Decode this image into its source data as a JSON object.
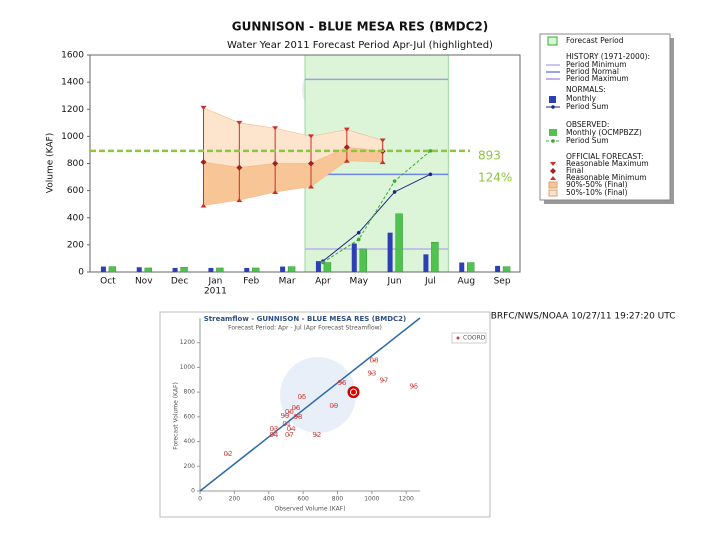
{
  "chart_data": [
    {
      "type": "bar",
      "title": "GUNNISON - BLUE MESA RES    (BMDC2)",
      "subtitle": "Water Year 2011  Forecast Period Apr-Jul (highlighted)",
      "ylabel": "Volume (KAF)",
      "categories": [
        "Oct",
        "Nov",
        "Dec",
        "Jan",
        "Feb",
        "Mar",
        "Apr",
        "May",
        "Jun",
        "Jul",
        "Aug",
        "Sep"
      ],
      "year_label": "2011",
      "ylim": [
        0,
        1600
      ],
      "yticks": [
        0,
        200,
        400,
        600,
        800,
        1000,
        1200,
        1400,
        1600
      ],
      "forecast_period": {
        "name": "Forecast Period",
        "color": "#dcf5d8"
      },
      "history": {
        "title": "HISTORY (1971-2000):",
        "lines": [
          {
            "name": "Period Minimum",
            "color": "#b9b2ec",
            "value": 170
          },
          {
            "name": "Period Normal",
            "color": "#6f86e0",
            "value": 720
          },
          {
            "name": "Period Maximum",
            "color": "#a99be6",
            "value": 1420
          }
        ]
      },
      "normals": {
        "title": "NORMALS:",
        "monthly": {
          "name": "Monthly",
          "color": "#2d3fb5",
          "values": [
            40,
            35,
            30,
            30,
            30,
            40,
            80,
            210,
            290,
            130,
            70,
            45
          ]
        },
        "period_sum": {
          "name": "Period Sum",
          "color": "#1c2a80",
          "values": [
            null,
            null,
            null,
            null,
            null,
            null,
            80,
            290,
            590,
            720,
            null,
            null
          ]
        }
      },
      "observed": {
        "title": "OBSERVED:",
        "monthly": {
          "name": "Monthly (OCMPBZZ)",
          "color": "#4fc24f",
          "values": [
            40,
            30,
            35,
            30,
            30,
            40,
            70,
            170,
            430,
            220,
            70,
            40
          ]
        },
        "period_sum": {
          "name": "Period Sum",
          "color": "#39a839",
          "values": [
            null,
            null,
            null,
            null,
            null,
            null,
            70,
            240,
            670,
            893,
            null,
            null
          ]
        }
      },
      "forecast": {
        "title": "OFFICIAL FORECAST:",
        "reasonable_max": {
          "name": "Reasonable Maximum",
          "color": "#c8322a",
          "values": [
            null,
            null,
            null,
            1210,
            1100,
            1060,
            1000,
            1050,
            970,
            null,
            null,
            null
          ]
        },
        "final": {
          "name": "Final",
          "color": "#a32020",
          "values": [
            null,
            null,
            null,
            810,
            770,
            800,
            800,
            920,
            890,
            null,
            null,
            null
          ]
        },
        "reasonable_min": {
          "name": "Reasonable Minimum",
          "color": "#c8322a",
          "values": [
            null,
            null,
            null,
            490,
            530,
            590,
            630,
            820,
            810,
            null,
            null,
            null
          ]
        },
        "band_90_50": {
          "name": "90%-50% (Final)",
          "color": "#f8c596"
        },
        "band_50_10": {
          "name": "50%-10% (Final)",
          "color": "#fde4cc"
        }
      },
      "observed_total": {
        "value": 893,
        "color": "#8cc63f",
        "percent_label": "124%"
      },
      "footer": "CBRFC/NWS/NOAA 10/27/11 19:27:20 UTC"
    },
    {
      "type": "scatter",
      "title": "Streamflow - GUNNISON - BLUE MESA RES (BMDC2)",
      "subtitle": "Forecast Period: Apr - Jul (Apr Forecast Streamflow)",
      "xlabel": "Observed Volume (KAF)",
      "ylabel": "Forecast Volume (KAF)",
      "xlim": [
        0,
        1280
      ],
      "ylim": [
        0,
        1400
      ],
      "xticks": [
        0,
        200,
        400,
        600,
        800,
        1000,
        1200
      ],
      "yticks": [
        0,
        200,
        400,
        600,
        800,
        1000,
        1200
      ],
      "color": "#d04040",
      "points": {
        "labels": [
          "08",
          "93",
          "97",
          "95",
          "96",
          "05",
          "09",
          "06",
          "99",
          "98",
          "00",
          "01",
          "04",
          "03",
          "94",
          "07",
          "92",
          "02"
        ],
        "x": [
          1013,
          1000,
          1070,
          1244,
          826,
          593,
          779,
          558,
          494,
          570,
          520,
          505,
          530,
          430,
          430,
          520,
          680,
          163
        ],
        "values": [
          1055,
          950,
          895,
          845,
          874,
          761,
          688,
          672,
          607,
          600,
          640,
          542,
          500,
          502,
          453,
          453,
          453,
          299
        ]
      },
      "current": {
        "x": 893,
        "value": 800,
        "color": "#d40000"
      },
      "legend": {
        "name": "COORD",
        "color": "#d04040"
      }
    }
  ]
}
